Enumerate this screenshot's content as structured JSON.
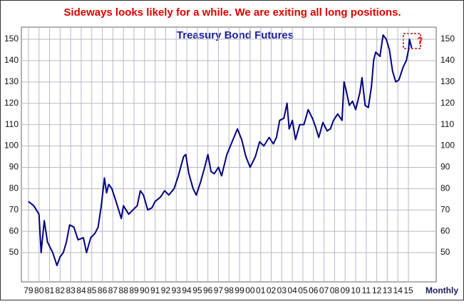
{
  "chart_data": {
    "type": "line",
    "title": "Sideways looks likely for a while. We are exiting all long positions.",
    "subtitle": "Treasury Bond Futures",
    "x_label": "Monthly",
    "annotation": "?",
    "grid": true,
    "xlim": [
      1978.33,
      2017.63
    ],
    "xticks": [
      {
        "value": 1979,
        "label": "79"
      },
      {
        "value": 1980,
        "label": "80"
      },
      {
        "value": 1981,
        "label": "81"
      },
      {
        "value": 1982,
        "label": "82"
      },
      {
        "value": 1983,
        "label": "83"
      },
      {
        "value": 1984,
        "label": "84"
      },
      {
        "value": 1985,
        "label": "85"
      },
      {
        "value": 1986,
        "label": "86"
      },
      {
        "value": 1987,
        "label": "87"
      },
      {
        "value": 1988,
        "label": "88"
      },
      {
        "value": 1989,
        "label": "89"
      },
      {
        "value": 1990,
        "label": "90"
      },
      {
        "value": 1991,
        "label": "91"
      },
      {
        "value": 1992,
        "label": "92"
      },
      {
        "value": 1993,
        "label": "93"
      },
      {
        "value": 1994,
        "label": "94"
      },
      {
        "value": 1995,
        "label": "95"
      },
      {
        "value": 1996,
        "label": "96"
      },
      {
        "value": 1997,
        "label": "97"
      },
      {
        "value": 1998,
        "label": "98"
      },
      {
        "value": 1999,
        "label": "99"
      },
      {
        "value": 2000,
        "label": "00"
      },
      {
        "value": 2001,
        "label": "01"
      },
      {
        "value": 2002,
        "label": "02"
      },
      {
        "value": 2003,
        "label": "03"
      },
      {
        "value": 2004,
        "label": "04"
      },
      {
        "value": 2005,
        "label": "05"
      },
      {
        "value": 2006,
        "label": "06"
      },
      {
        "value": 2007,
        "label": "07"
      },
      {
        "value": 2008,
        "label": "08"
      },
      {
        "value": 2009,
        "label": "09"
      },
      {
        "value": 2010,
        "label": "10"
      },
      {
        "value": 2011,
        "label": "11"
      },
      {
        "value": 2012,
        "label": "12"
      },
      {
        "value": 2013,
        "label": "13"
      },
      {
        "value": 2014,
        "label": "14"
      },
      {
        "value": 2015,
        "label": "15"
      }
    ],
    "ylim": [
      36.3,
      155.7
    ],
    "yticks": [
      50,
      60,
      70,
      80,
      90,
      100,
      110,
      120,
      130,
      140,
      150
    ],
    "series": [
      {
        "name": "Treasury Bond Futures",
        "color": "#000080",
        "x": [
          1979.0,
          1979.5,
          1980.0,
          1980.2,
          1980.5,
          1980.8,
          1981.0,
          1981.3,
          1981.7,
          1982.0,
          1982.3,
          1982.6,
          1982.9,
          1983.3,
          1983.7,
          1984.2,
          1984.5,
          1984.9,
          1985.3,
          1985.6,
          1985.9,
          1986.2,
          1986.4,
          1986.6,
          1986.9,
          1987.3,
          1987.8,
          1988.0,
          1988.5,
          1988.9,
          1989.3,
          1989.6,
          1989.9,
          1990.3,
          1990.7,
          1991.0,
          1991.5,
          1991.9,
          1992.3,
          1992.8,
          1993.2,
          1993.7,
          1993.9,
          1994.2,
          1994.6,
          1994.9,
          1995.3,
          1995.7,
          1996.0,
          1996.3,
          1996.6,
          1997.0,
          1997.3,
          1997.8,
          1998.3,
          1998.8,
          1999.2,
          1999.6,
          2000.0,
          2000.5,
          2000.9,
          2001.3,
          2001.8,
          2002.2,
          2002.5,
          2002.8,
          2003.2,
          2003.5,
          2003.7,
          2004.0,
          2004.3,
          2004.7,
          2005.1,
          2005.5,
          2005.9,
          2006.2,
          2006.5,
          2006.9,
          2007.3,
          2007.6,
          2007.9,
          2008.3,
          2008.7,
          2008.9,
          2009.1,
          2009.4,
          2009.7,
          2010.0,
          2010.4,
          2010.6,
          2010.9,
          2011.2,
          2011.5,
          2011.7,
          2011.9,
          2012.3,
          2012.6,
          2012.9,
          2013.2,
          2013.5,
          2013.8,
          2014.1,
          2014.5,
          2014.8,
          2015.0,
          2015.1,
          2015.3
        ],
        "values": [
          74,
          72,
          68,
          50,
          65,
          55,
          53,
          50,
          44,
          48,
          50,
          55,
          63,
          62,
          56,
          57,
          50,
          57,
          59,
          62,
          72,
          85,
          78,
          82,
          80,
          74,
          66,
          72,
          68,
          70,
          72,
          79,
          77,
          70,
          71,
          74,
          76,
          79,
          77,
          80,
          86,
          95,
          96,
          87,
          80,
          77,
          83,
          90,
          96,
          88,
          87,
          90,
          86,
          96,
          102,
          108,
          103,
          95,
          90,
          95,
          102,
          100,
          104,
          101,
          104,
          112,
          113,
          120,
          108,
          112,
          103,
          110,
          110,
          117,
          113,
          109,
          104,
          111,
          107,
          108,
          112,
          115,
          112,
          130,
          126,
          119,
          121,
          117,
          125,
          132,
          119,
          118,
          128,
          140,
          144,
          142,
          152,
          150,
          145,
          135,
          130,
          131,
          137,
          140,
          145,
          150,
          146
        ]
      }
    ]
  }
}
